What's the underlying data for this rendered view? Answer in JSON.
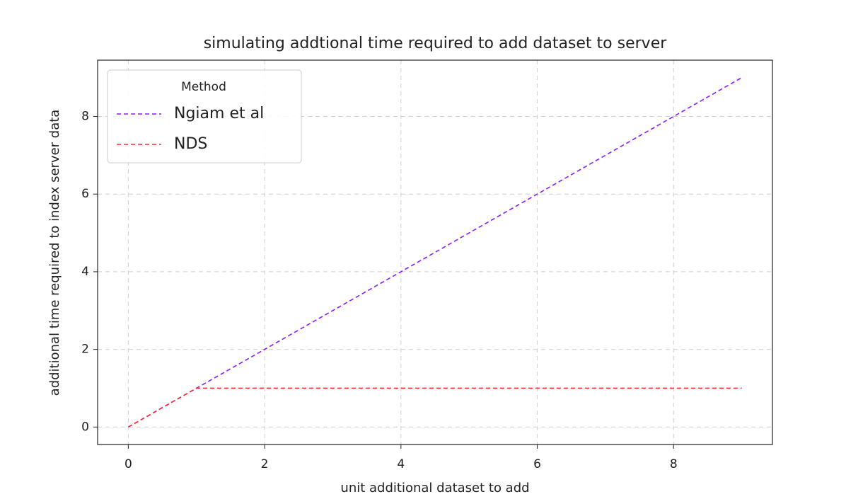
{
  "chart_data": {
    "type": "line",
    "title": "simulating addtional time required to add dataset to server",
    "xlabel": "unit additional dataset to add",
    "ylabel": "additional time required to index server data",
    "x": [
      0,
      1,
      2,
      3,
      4,
      5,
      6,
      7,
      8,
      9
    ],
    "series": [
      {
        "name": "Ngiam et al",
        "color": "#8a1cff",
        "values": [
          0,
          1,
          2,
          3,
          4,
          5,
          6,
          7,
          8,
          9
        ]
      },
      {
        "name": "NDS",
        "color": "#ff2a2a",
        "values": [
          0,
          1,
          1,
          1,
          1,
          1,
          1,
          1,
          1,
          1
        ]
      }
    ],
    "legend_title": "Method",
    "legend_position": "upper-left",
    "line_style": "dashed",
    "xlim": [
      -0.45,
      9.45
    ],
    "xticks": [
      0,
      2,
      4,
      6,
      8
    ],
    "ylim": [
      -0.45,
      9.45
    ],
    "yticks": [
      0,
      2,
      4,
      6,
      8
    ],
    "grid": true
  }
}
